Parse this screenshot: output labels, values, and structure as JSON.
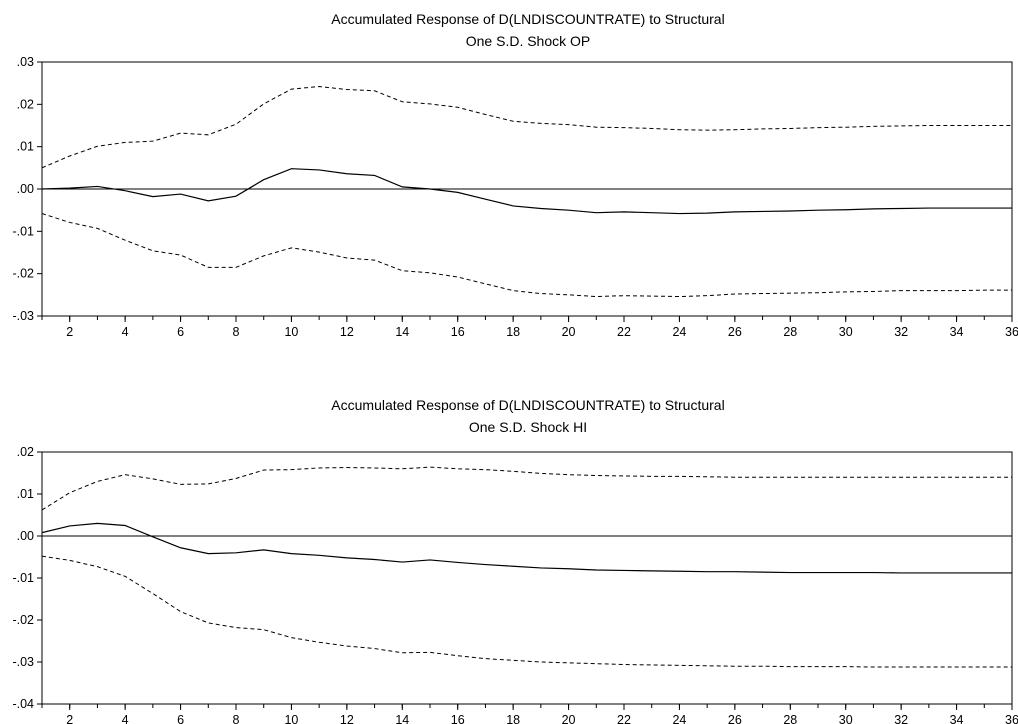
{
  "chart_data": [
    {
      "type": "line",
      "title": [
        "Accumulated Response of D(LNDISCOUNTRATE) to Structural",
        "One S.D. Shock OP"
      ],
      "x": [
        1,
        2,
        3,
        4,
        5,
        6,
        7,
        8,
        9,
        10,
        11,
        12,
        13,
        14,
        15,
        16,
        17,
        18,
        19,
        20,
        21,
        22,
        23,
        24,
        25,
        26,
        27,
        28,
        29,
        30,
        31,
        32,
        33,
        34,
        35,
        36
      ],
      "xlim": [
        1,
        36
      ],
      "ylim": [
        -0.03,
        0.03
      ],
      "y_ticks": [
        0.03,
        0.02,
        0.01,
        0.0,
        -0.01,
        -0.02,
        -0.03
      ],
      "y_tick_labels": [
        ".03",
        ".02",
        ".01",
        ".00",
        "-.01",
        "-.02",
        "-.03"
      ],
      "x_ticks": [
        2,
        4,
        6,
        8,
        10,
        12,
        14,
        16,
        18,
        20,
        22,
        24,
        26,
        28,
        30,
        32,
        34,
        36
      ],
      "x_tick_labels": [
        "2",
        "4",
        "6",
        "8",
        "10",
        "12",
        "14",
        "16",
        "18",
        "20",
        "22",
        "24",
        "26",
        "28",
        "30",
        "32",
        "34",
        "36"
      ],
      "zero_line": true,
      "series": [
        {
          "style": "solid",
          "values": [
            0.0,
            0.0002,
            0.0006,
            -0.0004,
            -0.0018,
            -0.0012,
            -0.0028,
            -0.0017,
            0.0022,
            0.0048,
            0.0045,
            0.0036,
            0.0032,
            0.0005,
            0.0,
            -0.0008,
            -0.0024,
            -0.004,
            -0.0046,
            -0.005,
            -0.0056,
            -0.0054,
            -0.0056,
            -0.0058,
            -0.0057,
            -0.0054,
            -0.0053,
            -0.0052,
            -0.005,
            -0.0049,
            -0.0047,
            -0.0046,
            -0.0045,
            -0.0045,
            -0.0045,
            -0.0045
          ]
        },
        {
          "style": "dashed",
          "values": [
            0.005,
            0.0078,
            0.0101,
            0.011,
            0.0113,
            0.0132,
            0.0128,
            0.0153,
            0.0201,
            0.0236,
            0.0242,
            0.0235,
            0.0232,
            0.0206,
            0.0201,
            0.0193,
            0.0176,
            0.016,
            0.0155,
            0.0152,
            0.0146,
            0.0145,
            0.0143,
            0.014,
            0.0139,
            0.014,
            0.0142,
            0.0143,
            0.0145,
            0.0146,
            0.0148,
            0.0149,
            0.015,
            0.015,
            0.015,
            0.015
          ]
        },
        {
          "style": "dashed",
          "values": [
            -0.0058,
            -0.0079,
            -0.0093,
            -0.0121,
            -0.0146,
            -0.0156,
            -0.0185,
            -0.0185,
            -0.0158,
            -0.0139,
            -0.0149,
            -0.0163,
            -0.0168,
            -0.0193,
            -0.0198,
            -0.0208,
            -0.0224,
            -0.024,
            -0.0247,
            -0.025,
            -0.0254,
            -0.0252,
            -0.0253,
            -0.0254,
            -0.0252,
            -0.0248,
            -0.0247,
            -0.0246,
            -0.0245,
            -0.0243,
            -0.0242,
            -0.024,
            -0.024,
            -0.024,
            -0.0239,
            -0.0239
          ]
        }
      ]
    },
    {
      "type": "line",
      "title": [
        "Accumulated Response of D(LNDISCOUNTRATE) to Structural",
        "One S.D. Shock HI"
      ],
      "x": [
        1,
        2,
        3,
        4,
        5,
        6,
        7,
        8,
        9,
        10,
        11,
        12,
        13,
        14,
        15,
        16,
        17,
        18,
        19,
        20,
        21,
        22,
        23,
        24,
        25,
        26,
        27,
        28,
        29,
        30,
        31,
        32,
        33,
        34,
        35,
        36
      ],
      "xlim": [
        1,
        36
      ],
      "ylim": [
        -0.04,
        0.02
      ],
      "y_ticks": [
        0.02,
        0.01,
        0.0,
        -0.01,
        -0.02,
        -0.03,
        -0.04
      ],
      "y_tick_labels": [
        ".02",
        ".01",
        ".00",
        "-.01",
        "-.02",
        "-.03",
        "-.04"
      ],
      "x_ticks": [
        2,
        4,
        6,
        8,
        10,
        12,
        14,
        16,
        18,
        20,
        22,
        24,
        26,
        28,
        30,
        32,
        34,
        36
      ],
      "x_tick_labels": [
        "2",
        "4",
        "6",
        "8",
        "10",
        "12",
        "14",
        "16",
        "18",
        "20",
        "22",
        "24",
        "26",
        "28",
        "30",
        "32",
        "34",
        "36"
      ],
      "zero_line": true,
      "series": [
        {
          "style": "solid",
          "values": [
            0.0008,
            0.0024,
            0.003,
            0.0025,
            -0.0002,
            -0.0028,
            -0.0042,
            -0.004,
            -0.0033,
            -0.0042,
            -0.0046,
            -0.0052,
            -0.0056,
            -0.0062,
            -0.0057,
            -0.0063,
            -0.0068,
            -0.0072,
            -0.0076,
            -0.0078,
            -0.0081,
            -0.0082,
            -0.0083,
            -0.0084,
            -0.0085,
            -0.0085,
            -0.0086,
            -0.0087,
            -0.0087,
            -0.0087,
            -0.0087,
            -0.0088,
            -0.0088,
            -0.0088,
            -0.0088,
            -0.0088
          ]
        },
        {
          "style": "dashed",
          "values": [
            0.0062,
            0.0103,
            0.013,
            0.0146,
            0.0136,
            0.0123,
            0.0124,
            0.0137,
            0.0157,
            0.0158,
            0.0162,
            0.0163,
            0.0162,
            0.016,
            0.0164,
            0.016,
            0.0158,
            0.0154,
            0.0149,
            0.0146,
            0.0144,
            0.0143,
            0.0142,
            0.0142,
            0.0141,
            0.014,
            0.014,
            0.014,
            0.014,
            0.014,
            0.014,
            0.014,
            0.014,
            0.014,
            0.014,
            0.014
          ]
        },
        {
          "style": "dashed",
          "values": [
            -0.0048,
            -0.0058,
            -0.0073,
            -0.0096,
            -0.0137,
            -0.018,
            -0.0207,
            -0.0218,
            -0.0223,
            -0.0242,
            -0.0253,
            -0.0262,
            -0.0268,
            -0.0278,
            -0.0277,
            -0.0285,
            -0.0292,
            -0.0296,
            -0.03,
            -0.0302,
            -0.0304,
            -0.0306,
            -0.0307,
            -0.0308,
            -0.0309,
            -0.031,
            -0.031,
            -0.0311,
            -0.0311,
            -0.0311,
            -0.0312,
            -0.0312,
            -0.0312,
            -0.0312,
            -0.0312,
            -0.0312
          ]
        }
      ]
    }
  ]
}
